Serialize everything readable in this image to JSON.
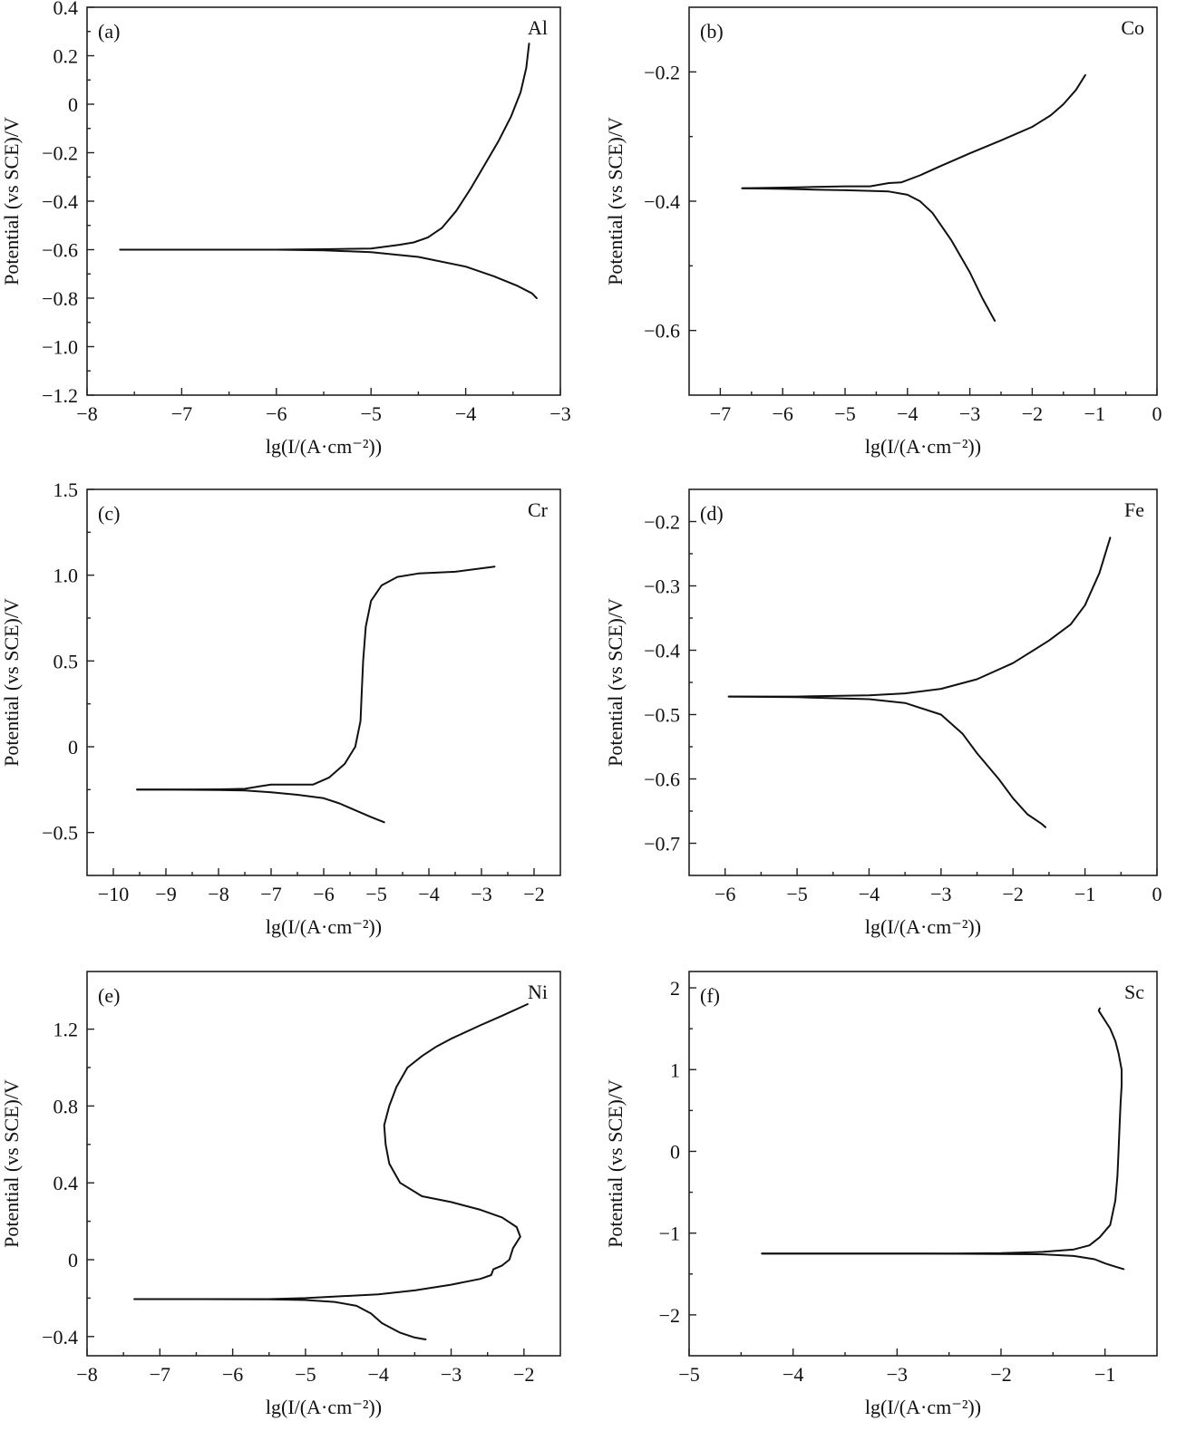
{
  "chart_data": [
    {
      "type": "line",
      "panel": "(a)",
      "element": "Al",
      "xlabel": "lg(I/(A·cm⁻²))",
      "ylabel": "Potential (vs SCE)/V",
      "xlim": [
        -8,
        -3
      ],
      "ylim": [
        -1.2,
        0.4
      ],
      "xticks": [
        -8,
        -7,
        -6,
        -5,
        -4,
        -3
      ],
      "xtick_labels": [
        "−8",
        "−7",
        "−6",
        "−5",
        "−4",
        "−3"
      ],
      "yticks": [
        -1.2,
        -1.0,
        -0.8,
        -0.6,
        -0.4,
        -0.2,
        0,
        0.2,
        0.4
      ],
      "ytick_labels": [
        "−1.2",
        "−1.0",
        "−0.8",
        "−0.6",
        "−0.4",
        "−0.2",
        "0",
        "0.2",
        "0.4"
      ],
      "series": [
        {
          "x": [
            -3.33,
            -3.36,
            -3.42,
            -3.52,
            -3.65,
            -3.8,
            -3.95,
            -4.1,
            -4.25,
            -4.4,
            -4.55,
            -4.7,
            -4.8,
            -5.0,
            -5.5,
            -6.0,
            -6.5,
            -7.0,
            -7.65
          ],
          "y": [
            0.25,
            0.15,
            0.05,
            -0.05,
            -0.15,
            -0.25,
            -0.35,
            -0.44,
            -0.51,
            -0.55,
            -0.57,
            -0.58,
            -0.585,
            -0.595,
            -0.598,
            -0.6,
            -0.6,
            -0.6,
            -0.6
          ]
        },
        {
          "x": [
            -7.65,
            -7.0,
            -6.5,
            -6.0,
            -5.5,
            -5.0,
            -4.5,
            -4.0,
            -3.7,
            -3.45,
            -3.3,
            -3.25
          ],
          "y": [
            -0.6,
            -0.6,
            -0.6,
            -0.6,
            -0.603,
            -0.61,
            -0.63,
            -0.67,
            -0.71,
            -0.75,
            -0.78,
            -0.8
          ]
        }
      ]
    },
    {
      "type": "line",
      "panel": "(b)",
      "element": "Co",
      "xlabel": "lg(I/(A·cm⁻²))",
      "ylabel": "Potential (vs SCE)/V",
      "xlim": [
        -7.5,
        0
      ],
      "ylim": [
        -0.7,
        -0.1
      ],
      "xticks": [
        -7,
        -6,
        -5,
        -4,
        -3,
        -2,
        -1,
        0
      ],
      "xtick_labels": [
        "−7",
        "−6",
        "−5",
        "−4",
        "−3",
        "−2",
        "−1",
        "0"
      ],
      "yticks": [
        -0.6,
        -0.4,
        -0.2
      ],
      "ytick_labels": [
        "−0.6",
        "−0.4",
        "−0.2"
      ],
      "series": [
        {
          "x": [
            -6.65,
            -6.0,
            -5.5,
            -5.0,
            -4.6,
            -4.3,
            -4.1,
            -3.8,
            -3.5,
            -3.0,
            -2.5,
            -2.0,
            -1.7,
            -1.5,
            -1.3,
            -1.15
          ],
          "y": [
            -0.38,
            -0.379,
            -0.378,
            -0.377,
            -0.377,
            -0.372,
            -0.371,
            -0.36,
            -0.347,
            -0.326,
            -0.306,
            -0.285,
            -0.267,
            -0.25,
            -0.228,
            -0.205
          ]
        },
        {
          "x": [
            -6.65,
            -6.0,
            -5.5,
            -5.0,
            -4.6,
            -4.3,
            -4.0,
            -3.8,
            -3.6,
            -3.3,
            -3.0,
            -2.8,
            -2.6
          ],
          "y": [
            -0.38,
            -0.381,
            -0.382,
            -0.383,
            -0.384,
            -0.385,
            -0.39,
            -0.4,
            -0.418,
            -0.46,
            -0.51,
            -0.55,
            -0.585
          ]
        }
      ]
    },
    {
      "type": "line",
      "panel": "(c)",
      "element": "Cr",
      "xlabel": "lg(I/(A·cm⁻²))",
      "ylabel": "Potential (vs SCE)/V",
      "xlim": [
        -10.5,
        -1.5
      ],
      "ylim": [
        -0.75,
        1.5
      ],
      "xticks": [
        -10,
        -9,
        -8,
        -7,
        -6,
        -5,
        -4,
        -3,
        -2
      ],
      "xtick_labels": [
        "−10",
        "−9",
        "−8",
        "−7",
        "−6",
        "−5",
        "−4",
        "−3",
        "−2"
      ],
      "yticks": [
        -0.5,
        0,
        0.5,
        1.0,
        1.5
      ],
      "ytick_labels": [
        "−0.5",
        "0",
        "0.5",
        "1.0",
        "1.5"
      ],
      "series": [
        {
          "x": [
            -9.55,
            -9.0,
            -8.0,
            -7.5,
            -7.2,
            -7.0,
            -6.6,
            -6.2,
            -5.9,
            -5.6,
            -5.4,
            -5.3,
            -5.28,
            -5.25,
            -5.2,
            -5.1,
            -4.9,
            -4.6,
            -4.2,
            -3.5,
            -3.0,
            -2.75
          ],
          "y": [
            -0.25,
            -0.25,
            -0.248,
            -0.245,
            -0.23,
            -0.22,
            -0.22,
            -0.22,
            -0.18,
            -0.1,
            0.0,
            0.15,
            0.3,
            0.5,
            0.7,
            0.85,
            0.94,
            0.99,
            1.01,
            1.02,
            1.04,
            1.05
          ]
        },
        {
          "x": [
            -9.55,
            -9.0,
            -8.0,
            -7.5,
            -7.0,
            -6.5,
            -6.0,
            -5.7,
            -5.4,
            -5.1,
            -4.85
          ],
          "y": [
            -0.25,
            -0.25,
            -0.252,
            -0.255,
            -0.265,
            -0.28,
            -0.3,
            -0.33,
            -0.37,
            -0.41,
            -0.44
          ]
        }
      ]
    },
    {
      "type": "line",
      "panel": "(d)",
      "element": "Fe",
      "xlabel": "lg(I/(A·cm⁻²))",
      "ylabel": "Potential (vs SCE)/V",
      "xlim": [
        -6.5,
        0
      ],
      "ylim": [
        -0.75,
        -0.15
      ],
      "xticks": [
        -6,
        -5,
        -4,
        -3,
        -2,
        -1,
        0
      ],
      "xtick_labels": [
        "−6",
        "−5",
        "−4",
        "−3",
        "−2",
        "−1",
        "0"
      ],
      "yticks": [
        -0.7,
        -0.6,
        -0.5,
        -0.4,
        -0.3,
        -0.2
      ],
      "ytick_labels": [
        "−0.7",
        "−0.6",
        "−0.5",
        "−0.4",
        "−0.3",
        "−0.2"
      ],
      "series": [
        {
          "x": [
            -5.95,
            -5.0,
            -4.0,
            -3.5,
            -3.0,
            -2.5,
            -2.0,
            -1.5,
            -1.2,
            -1.0,
            -0.8,
            -0.65
          ],
          "y": [
            -0.472,
            -0.472,
            -0.47,
            -0.467,
            -0.46,
            -0.445,
            -0.42,
            -0.385,
            -0.36,
            -0.33,
            -0.28,
            -0.225
          ]
        },
        {
          "x": [
            -5.95,
            -5.0,
            -4.0,
            -3.5,
            -3.0,
            -2.7,
            -2.5,
            -2.2,
            -2.0,
            -1.8,
            -1.6,
            -1.55
          ],
          "y": [
            -0.472,
            -0.473,
            -0.476,
            -0.482,
            -0.5,
            -0.53,
            -0.56,
            -0.6,
            -0.63,
            -0.655,
            -0.67,
            -0.675
          ]
        }
      ]
    },
    {
      "type": "line",
      "panel": "(e)",
      "element": "Ni",
      "xlabel": "lg(I/(A·cm⁻²))",
      "ylabel": "Potential (vs SCE)/V",
      "xlim": [
        -8,
        -1.5
      ],
      "ylim": [
        -0.5,
        1.5
      ],
      "xticks": [
        -8,
        -7,
        -6,
        -5,
        -4,
        -3,
        -2
      ],
      "xtick_labels": [
        "−8",
        "−7",
        "−6",
        "−5",
        "−4",
        "−3",
        "−2"
      ],
      "yticks": [
        -0.4,
        0,
        0.4,
        0.8,
        1.2
      ],
      "ytick_labels": [
        "−0.4",
        "0",
        "0.4",
        "0.8",
        "1.2"
      ],
      "series": [
        {
          "x": [
            -7.35,
            -6.5,
            -5.5,
            -5.0,
            -4.0,
            -3.5,
            -3.0,
            -2.6,
            -2.45,
            -2.42,
            -2.3,
            -2.2,
            -2.15,
            -2.05,
            -2.1,
            -2.3,
            -2.6,
            -3.0,
            -3.4,
            -3.7,
            -3.85,
            -3.9,
            -3.92,
            -3.85,
            -3.75,
            -3.6,
            -3.4,
            -3.2,
            -3.0,
            -2.6,
            -2.3,
            -1.95
          ],
          "y": [
            -0.205,
            -0.205,
            -0.205,
            -0.2,
            -0.18,
            -0.16,
            -0.13,
            -0.1,
            -0.08,
            -0.05,
            -0.03,
            0.0,
            0.06,
            0.12,
            0.17,
            0.22,
            0.26,
            0.3,
            0.33,
            0.4,
            0.5,
            0.6,
            0.7,
            0.8,
            0.9,
            1.0,
            1.06,
            1.11,
            1.15,
            1.22,
            1.27,
            1.33
          ]
        },
        {
          "x": [
            -7.35,
            -6.5,
            -5.5,
            -5.0,
            -4.6,
            -4.3,
            -4.1,
            -3.95,
            -3.7,
            -3.5,
            -3.35
          ],
          "y": [
            -0.205,
            -0.205,
            -0.206,
            -0.21,
            -0.22,
            -0.24,
            -0.28,
            -0.33,
            -0.38,
            -0.405,
            -0.415
          ]
        }
      ]
    },
    {
      "type": "line",
      "panel": "(f)",
      "element": "Sc",
      "xlabel": "lg(I/(A·cm⁻²))",
      "ylabel": "Potential (vs SCE)/V",
      "xlim": [
        -5,
        -0.5
      ],
      "ylim": [
        -2.5,
        2.2
      ],
      "xticks": [
        -5,
        -4,
        -3,
        -2,
        -1
      ],
      "xtick_labels": [
        "−5",
        "−4",
        "−3",
        "−2",
        "−1"
      ],
      "yticks": [
        -2,
        -1,
        0,
        1,
        2
      ],
      "ytick_labels": [
        "−2",
        "−1",
        "0",
        "1",
        "2"
      ],
      "series": [
        {
          "x": [
            -4.3,
            -3.5,
            -3.0,
            -2.5,
            -2.0,
            -1.6,
            -1.3,
            -1.15,
            -1.05,
            -0.95,
            -0.9,
            -0.88,
            -0.87,
            -0.86,
            -0.85,
            -0.84,
            -0.84,
            -0.87,
            -0.9,
            -0.95,
            -1.0,
            -1.03,
            -1.06,
            -1.05
          ],
          "y": [
            -1.25,
            -1.25,
            -1.25,
            -1.25,
            -1.245,
            -1.23,
            -1.2,
            -1.15,
            -1.05,
            -0.9,
            -0.6,
            -0.3,
            0.0,
            0.3,
            0.6,
            0.8,
            1.0,
            1.2,
            1.35,
            1.5,
            1.6,
            1.66,
            1.72,
            1.75
          ]
        },
        {
          "x": [
            -4.3,
            -3.5,
            -3.0,
            -2.5,
            -2.0,
            -1.6,
            -1.3,
            -1.1,
            -1.0,
            -0.9,
            -0.82
          ],
          "y": [
            -1.25,
            -1.25,
            -1.25,
            -1.252,
            -1.255,
            -1.26,
            -1.28,
            -1.32,
            -1.37,
            -1.41,
            -1.44
          ]
        }
      ]
    }
  ]
}
